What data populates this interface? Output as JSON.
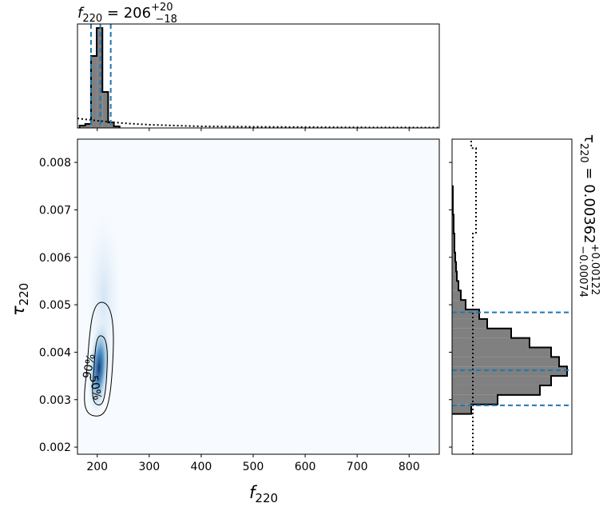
{
  "chart_data": {
    "type": "corner",
    "xlabel": {
      "symbol": "f",
      "sub": "220"
    },
    "ylabel": {
      "symbol": "τ",
      "sub": "220"
    },
    "xlim": [
      162,
      858
    ],
    "xticks": [
      200,
      300,
      400,
      500,
      600,
      700,
      800
    ],
    "ylim": [
      0.00185,
      0.00849
    ],
    "yticks": [
      0.002,
      0.003,
      0.004,
      0.005,
      0.006,
      0.007,
      0.008
    ],
    "joint": {
      "contour_labels": [
        "90%",
        "50%"
      ],
      "color": "#08519c",
      "background": "#f7fbff"
    },
    "marginal_x": {
      "title": {
        "symbol": "f",
        "sub": "220",
        "text": " = 206",
        "sup": "+20",
        "sub2": "−18"
      },
      "bins": [
        166,
        177,
        188,
        199,
        210,
        221,
        232,
        243
      ],
      "counts": [
        3,
        5,
        90,
        125,
        45,
        7,
        2
      ],
      "ylim": [
        0,
        130
      ],
      "quantiles": [
        188,
        206,
        226
      ],
      "prior": {
        "x": [
          162,
          200,
          250,
          300,
          400,
          500,
          600,
          700,
          858
        ],
        "values": [
          12,
          9,
          6,
          4,
          2,
          1.5,
          1,
          0.7,
          0.5
        ]
      },
      "color": "#808080",
      "line_color": "#1f77b4"
    },
    "marginal_y": {
      "title": {
        "symbol": "τ",
        "sub": "220",
        "text": " = 0.00362",
        "sup": "+0.00122",
        "sub2": "−0.00074"
      },
      "bins": [
        0.0027,
        0.0029,
        0.0031,
        0.0033,
        0.0035,
        0.0037,
        0.0039,
        0.0041,
        0.0043,
        0.0045,
        0.0047,
        0.0049,
        0.0051,
        0.0053,
        0.0055,
        0.0057,
        0.0059,
        0.0061,
        0.0063,
        0.0065,
        0.0067,
        0.0069,
        0.0071,
        0.0073,
        0.0075
      ],
      "counts": [
        24,
        57,
        110,
        124,
        144,
        134,
        124,
        97,
        74,
        44,
        34,
        17,
        11,
        8,
        6,
        5,
        4,
        3,
        3,
        2,
        2,
        1,
        1,
        1
      ],
      "xlim": [
        0,
        150
      ],
      "quantiles": [
        0.00288,
        0.00362,
        0.00484
      ],
      "prior": {
        "y": [
          0.00185,
          0.0065,
          0.0065,
          0.0083,
          0.0083,
          0.00849
        ],
        "values": [
          26,
          26,
          30,
          30,
          24,
          24
        ]
      },
      "color": "#808080",
      "line_color": "#1f77b4"
    }
  }
}
